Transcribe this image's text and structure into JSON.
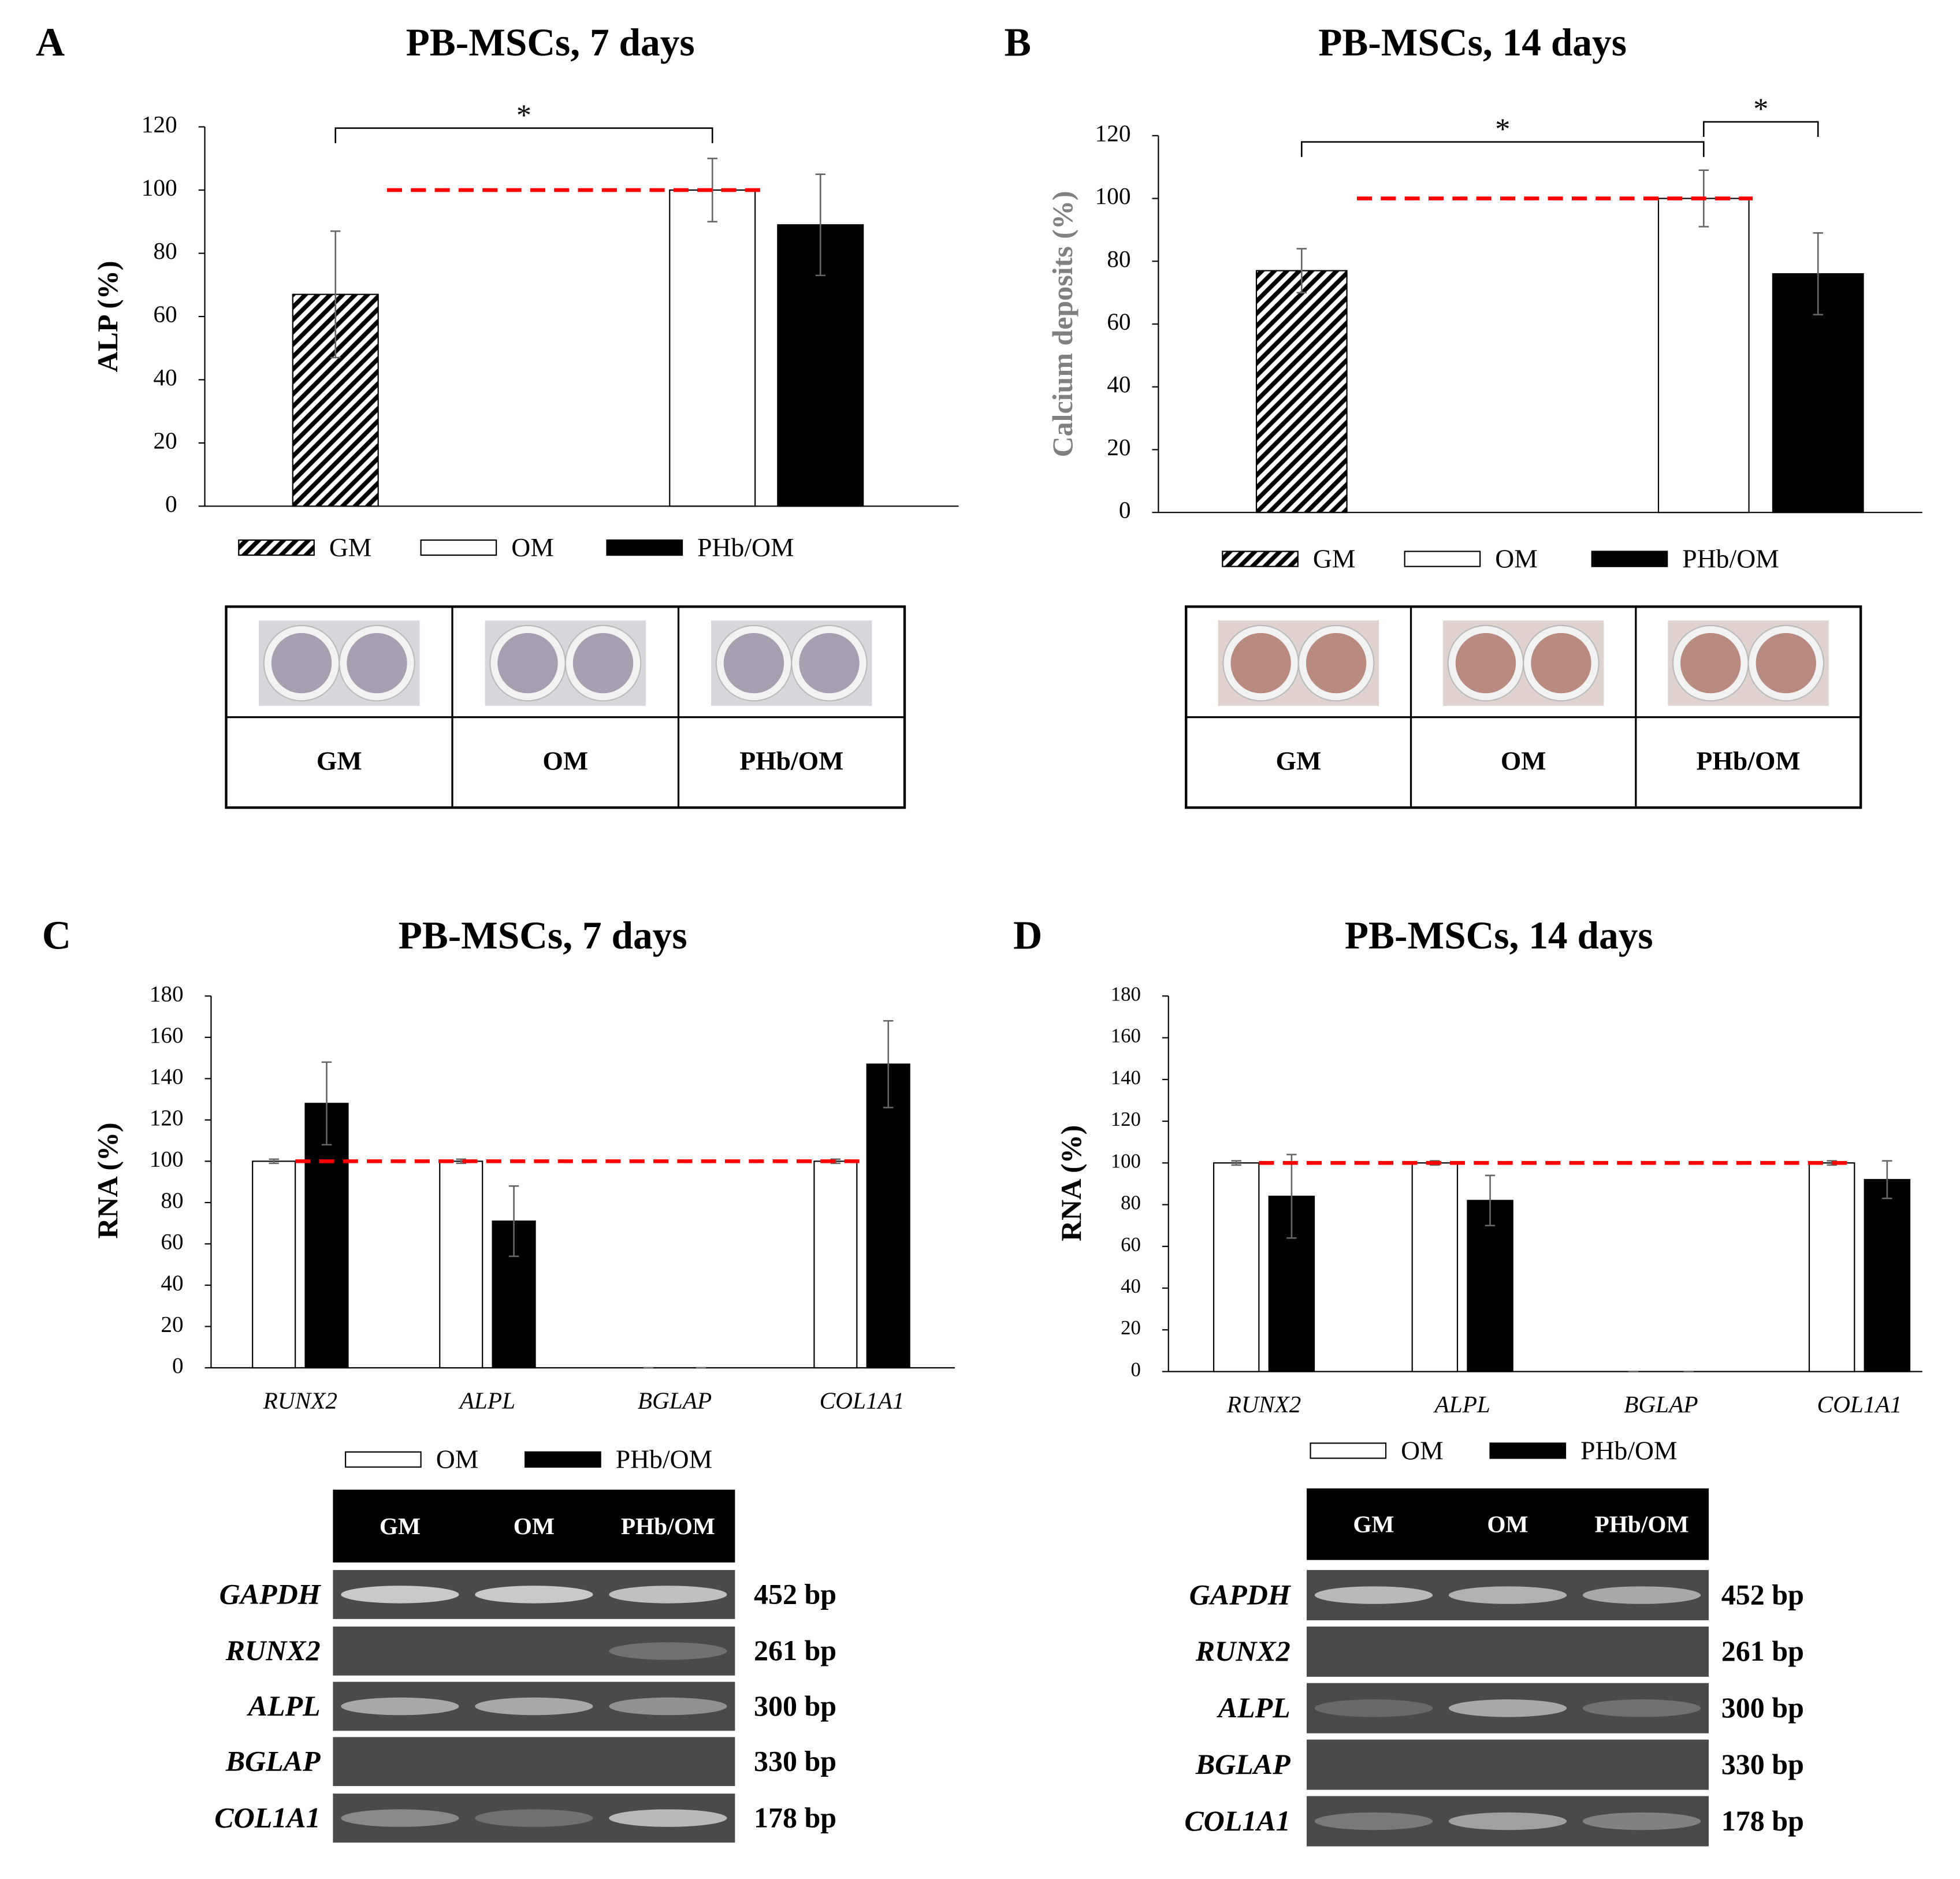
{
  "chart_data": [
    {
      "panel": "A",
      "type": "bar",
      "title": "PB-MSCs, 7 days",
      "ylabel": "ALP (%)",
      "categories": [
        "GM",
        "OM",
        "PHb/OM"
      ],
      "values": [
        67,
        100,
        89
      ],
      "errors": [
        20,
        10,
        16
      ],
      "patterns": [
        "hatch",
        "#ffffff",
        "#000000"
      ],
      "ylim": [
        0,
        120
      ],
      "yticks": [
        0,
        20,
        40,
        60,
        80,
        100,
        120
      ],
      "reference_line": 100,
      "reference_color": "#ff0000",
      "annotations": [
        {
          "label": "*",
          "between": [
            "GM",
            "OM"
          ]
        }
      ]
    },
    {
      "panel": "B",
      "type": "bar",
      "title": "PB-MSCs, 14 days",
      "ylabel": "Calcium deposits (%)",
      "categories": [
        "GM",
        "OM",
        "PHb/OM"
      ],
      "values": [
        77,
        100,
        76
      ],
      "errors": [
        7,
        9,
        13
      ],
      "patterns": [
        "hatch",
        "#ffffff",
        "#000000"
      ],
      "ylim": [
        0,
        120
      ],
      "yticks": [
        0,
        20,
        40,
        60,
        80,
        100,
        120
      ],
      "reference_line": 100,
      "reference_color": "#ff0000",
      "annotations": [
        {
          "label": "*",
          "between": [
            "GM",
            "OM"
          ]
        },
        {
          "label": "*",
          "between": [
            "OM",
            "PHb/OM"
          ]
        }
      ]
    },
    {
      "panel": "C",
      "type": "bar",
      "title": "PB-MSCs, 7 days",
      "ylabel": "RNA (%)",
      "categories": [
        "RUNX2",
        "ALPL",
        "BGLAP",
        "COL1A1"
      ],
      "series": [
        {
          "name": "OM",
          "color": "#ffffff",
          "values": [
            100,
            100,
            0,
            100
          ],
          "errors": [
            1,
            1,
            0,
            1
          ]
        },
        {
          "name": "PHb/OM",
          "color": "#000000",
          "values": [
            128,
            71,
            0,
            147
          ],
          "errors": [
            20,
            17,
            0,
            21
          ]
        }
      ],
      "ylim": [
        0,
        180
      ],
      "yticks": [
        0,
        20,
        40,
        60,
        80,
        100,
        120,
        140,
        160,
        180
      ],
      "reference_line": 100,
      "reference_color": "#ff0000"
    },
    {
      "panel": "D",
      "type": "bar",
      "title": "PB-MSCs, 14 days",
      "ylabel": "RNA (%)",
      "categories": [
        "RUNX2",
        "ALPL",
        "BGLAP",
        "COL1A1"
      ],
      "series": [
        {
          "name": "OM",
          "color": "#ffffff",
          "values": [
            100,
            100,
            0,
            100
          ],
          "errors": [
            1,
            1,
            0,
            1
          ]
        },
        {
          "name": "PHb/OM",
          "color": "#000000",
          "values": [
            84,
            82,
            0,
            92
          ],
          "errors": [
            20,
            12,
            0,
            9
          ]
        }
      ],
      "ylim": [
        0,
        180
      ],
      "yticks": [
        0,
        20,
        40,
        60,
        80,
        100,
        120,
        140,
        160,
        180
      ],
      "reference_line": 100,
      "reference_color": "#ff0000"
    }
  ],
  "well_tables": [
    {
      "columns": [
        "GM",
        "OM",
        "PHb/OM"
      ]
    },
    {
      "columns": [
        "GM",
        "OM",
        "PHb/OM"
      ]
    }
  ],
  "gels": [
    {
      "lanes": [
        "GM",
        "OM",
        "PHb/OM"
      ],
      "genes": [
        "GAPDH",
        "RUNX2",
        "ALPL",
        "BGLAP",
        "COL1A1"
      ],
      "sizes": [
        "452 bp",
        "261 bp",
        "300 bp",
        "330 bp",
        "178 bp"
      ]
    },
    {
      "lanes": [
        "GM",
        "OM",
        "PHb/OM"
      ],
      "genes": [
        "GAPDH",
        "RUNX2",
        "ALPL",
        "BGLAP",
        "COL1A1"
      ],
      "sizes": [
        "452 bp",
        "261 bp",
        "300 bp",
        "330 bp",
        "178 bp"
      ]
    }
  ]
}
